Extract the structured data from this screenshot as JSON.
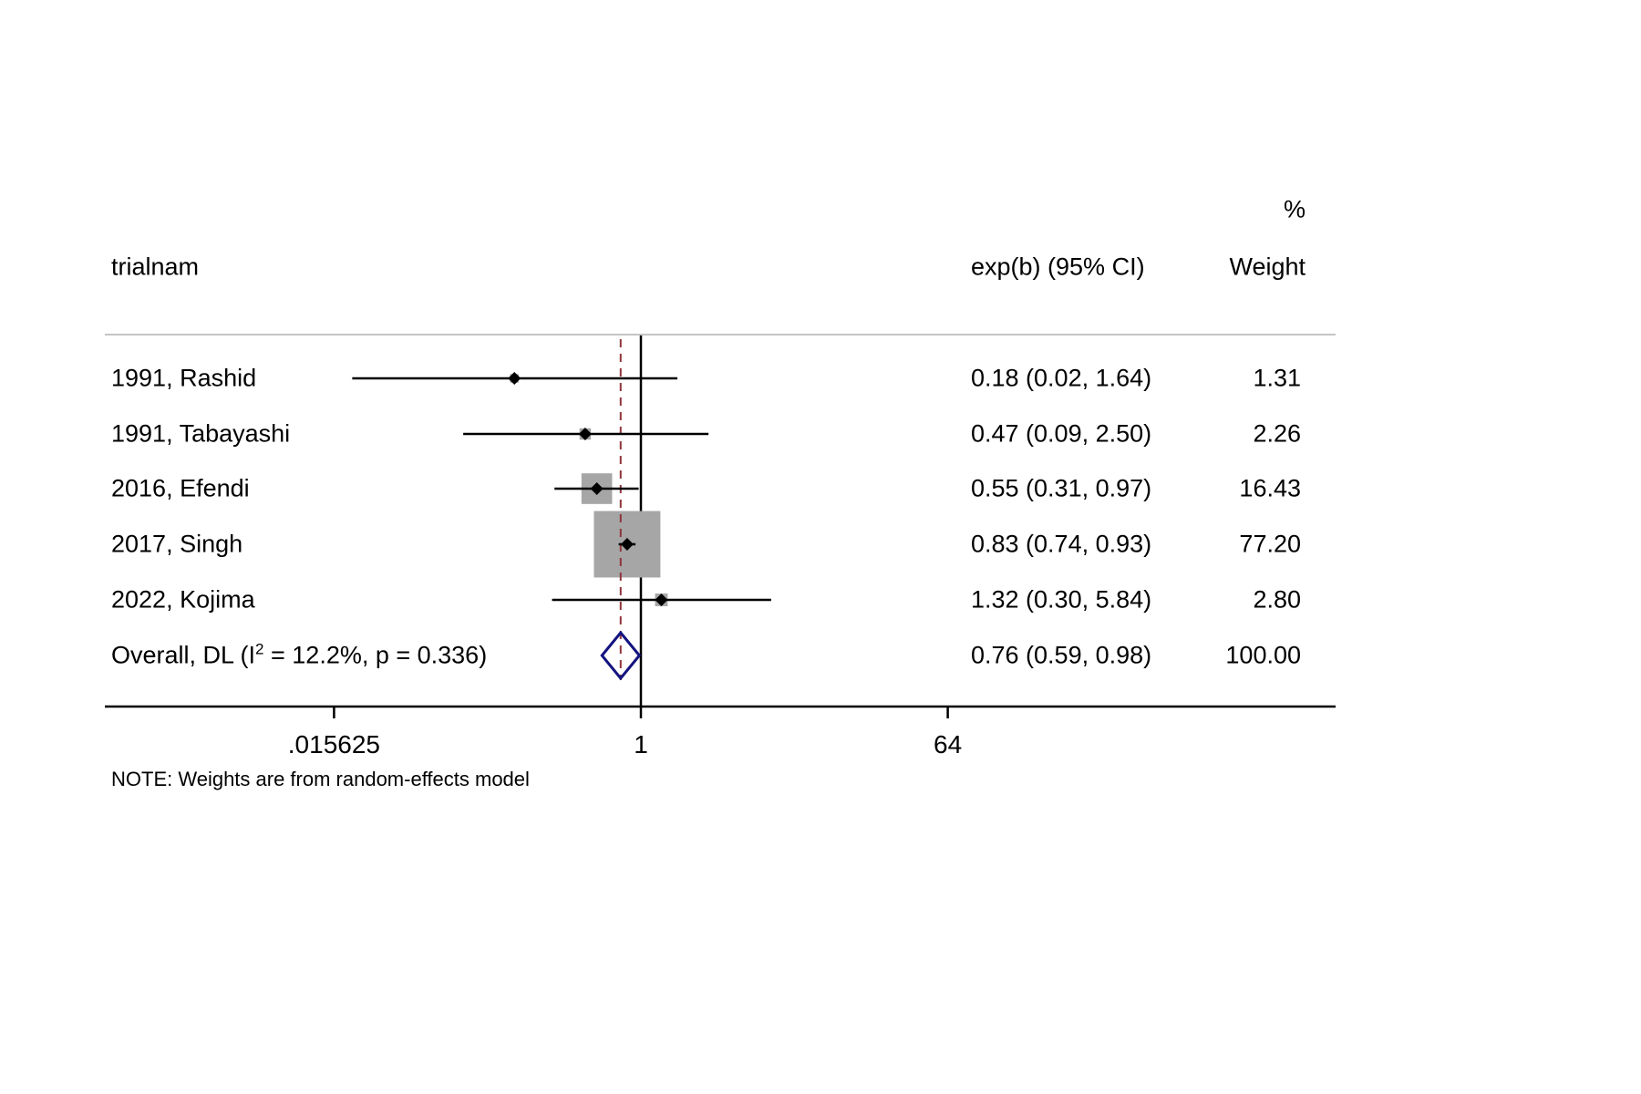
{
  "header": {
    "percent_label": "%",
    "trial_col": "trialnam",
    "effect_col": "exp(b) (95% CI)",
    "weight_col": "Weight"
  },
  "note": "NOTE: Weights are from random-effects model",
  "colors": {
    "text": "#000000",
    "weight_box": "#a6a6a6",
    "ci_line": "#000000",
    "marker": "#000000",
    "diamond_outline": "#131380",
    "overall_dashed_line": "#90353b",
    "separator": "#c4c4c4",
    "axis": "#000000"
  },
  "chart_data": {
    "type": "forest",
    "x_scale": "log2",
    "x_ticks": [
      0.015625,
      1,
      64
    ],
    "x_tick_labels": [
      ".015625",
      "1",
      "64"
    ],
    "null_line_value": 1,
    "overall_line_value": 0.76,
    "legend_position": "none",
    "grid": false,
    "studies": [
      {
        "label": "1991, Rashid",
        "effect": 0.18,
        "lo": 0.02,
        "hi": 1.64,
        "weight": 1.31,
        "ci_text": "0.18 (0.02, 1.64)",
        "weight_text": "1.31"
      },
      {
        "label": "1991, Tabayashi",
        "effect": 0.47,
        "lo": 0.09,
        "hi": 2.5,
        "weight": 2.26,
        "ci_text": "0.47 (0.09, 2.50)",
        "weight_text": "2.26"
      },
      {
        "label": "2016, Efendi",
        "effect": 0.55,
        "lo": 0.31,
        "hi": 0.97,
        "weight": 16.43,
        "ci_text": "0.55 (0.31, 0.97)",
        "weight_text": "16.43"
      },
      {
        "label": "2017, Singh",
        "effect": 0.83,
        "lo": 0.74,
        "hi": 0.93,
        "weight": 77.2,
        "ci_text": "0.83 (0.74, 0.93)",
        "weight_text": "77.20"
      },
      {
        "label": "2022, Kojima",
        "effect": 1.32,
        "lo": 0.3,
        "hi": 5.84,
        "weight": 2.8,
        "ci_text": "1.32 (0.30, 5.84)",
        "weight_text": "2.80"
      }
    ],
    "overall": {
      "label_prefix": "Overall, DL (I",
      "label_sup": "2",
      "label_suffix": " = 12.2%, p = 0.336)",
      "effect": 0.76,
      "lo": 0.59,
      "hi": 0.98,
      "ci_text": "0.76 (0.59, 0.98)",
      "weight_text": "100.00",
      "heterogeneity_i2": "12.2%",
      "heterogeneity_p": "0.336"
    }
  }
}
